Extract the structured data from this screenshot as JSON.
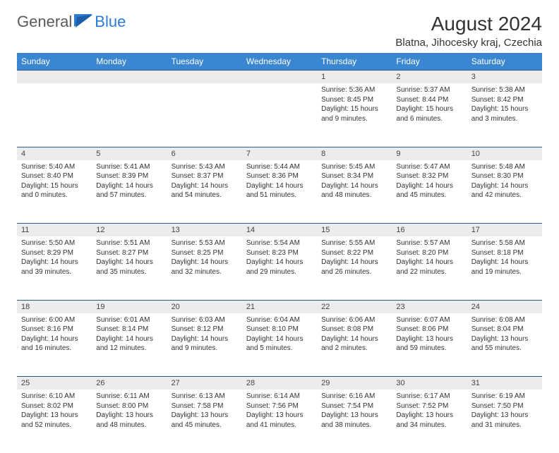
{
  "logo": {
    "general": "General",
    "blue": "Blue"
  },
  "title": "August 2024",
  "location": "Blatna, Jihocesky kraj, Czechia",
  "weekdays": [
    "Sunday",
    "Monday",
    "Tuesday",
    "Wednesday",
    "Thursday",
    "Friday",
    "Saturday"
  ],
  "header_bg": "#3a86d0",
  "border_color": "#2e5b8f",
  "daynum_bg": "#ececec",
  "days": [
    {
      "n": "",
      "sr": "",
      "ss": "",
      "dl1": "",
      "dl2": ""
    },
    {
      "n": "",
      "sr": "",
      "ss": "",
      "dl1": "",
      "dl2": ""
    },
    {
      "n": "",
      "sr": "",
      "ss": "",
      "dl1": "",
      "dl2": ""
    },
    {
      "n": "",
      "sr": "",
      "ss": "",
      "dl1": "",
      "dl2": ""
    },
    {
      "n": "1",
      "sr": "Sunrise: 5:36 AM",
      "ss": "Sunset: 8:45 PM",
      "dl1": "Daylight: 15 hours",
      "dl2": "and 9 minutes."
    },
    {
      "n": "2",
      "sr": "Sunrise: 5:37 AM",
      "ss": "Sunset: 8:44 PM",
      "dl1": "Daylight: 15 hours",
      "dl2": "and 6 minutes."
    },
    {
      "n": "3",
      "sr": "Sunrise: 5:38 AM",
      "ss": "Sunset: 8:42 PM",
      "dl1": "Daylight: 15 hours",
      "dl2": "and 3 minutes."
    },
    {
      "n": "4",
      "sr": "Sunrise: 5:40 AM",
      "ss": "Sunset: 8:40 PM",
      "dl1": "Daylight: 15 hours",
      "dl2": "and 0 minutes."
    },
    {
      "n": "5",
      "sr": "Sunrise: 5:41 AM",
      "ss": "Sunset: 8:39 PM",
      "dl1": "Daylight: 14 hours",
      "dl2": "and 57 minutes."
    },
    {
      "n": "6",
      "sr": "Sunrise: 5:43 AM",
      "ss": "Sunset: 8:37 PM",
      "dl1": "Daylight: 14 hours",
      "dl2": "and 54 minutes."
    },
    {
      "n": "7",
      "sr": "Sunrise: 5:44 AM",
      "ss": "Sunset: 8:36 PM",
      "dl1": "Daylight: 14 hours",
      "dl2": "and 51 minutes."
    },
    {
      "n": "8",
      "sr": "Sunrise: 5:45 AM",
      "ss": "Sunset: 8:34 PM",
      "dl1": "Daylight: 14 hours",
      "dl2": "and 48 minutes."
    },
    {
      "n": "9",
      "sr": "Sunrise: 5:47 AM",
      "ss": "Sunset: 8:32 PM",
      "dl1": "Daylight: 14 hours",
      "dl2": "and 45 minutes."
    },
    {
      "n": "10",
      "sr": "Sunrise: 5:48 AM",
      "ss": "Sunset: 8:30 PM",
      "dl1": "Daylight: 14 hours",
      "dl2": "and 42 minutes."
    },
    {
      "n": "11",
      "sr": "Sunrise: 5:50 AM",
      "ss": "Sunset: 8:29 PM",
      "dl1": "Daylight: 14 hours",
      "dl2": "and 39 minutes."
    },
    {
      "n": "12",
      "sr": "Sunrise: 5:51 AM",
      "ss": "Sunset: 8:27 PM",
      "dl1": "Daylight: 14 hours",
      "dl2": "and 35 minutes."
    },
    {
      "n": "13",
      "sr": "Sunrise: 5:53 AM",
      "ss": "Sunset: 8:25 PM",
      "dl1": "Daylight: 14 hours",
      "dl2": "and 32 minutes."
    },
    {
      "n": "14",
      "sr": "Sunrise: 5:54 AM",
      "ss": "Sunset: 8:23 PM",
      "dl1": "Daylight: 14 hours",
      "dl2": "and 29 minutes."
    },
    {
      "n": "15",
      "sr": "Sunrise: 5:55 AM",
      "ss": "Sunset: 8:22 PM",
      "dl1": "Daylight: 14 hours",
      "dl2": "and 26 minutes."
    },
    {
      "n": "16",
      "sr": "Sunrise: 5:57 AM",
      "ss": "Sunset: 8:20 PM",
      "dl1": "Daylight: 14 hours",
      "dl2": "and 22 minutes."
    },
    {
      "n": "17",
      "sr": "Sunrise: 5:58 AM",
      "ss": "Sunset: 8:18 PM",
      "dl1": "Daylight: 14 hours",
      "dl2": "and 19 minutes."
    },
    {
      "n": "18",
      "sr": "Sunrise: 6:00 AM",
      "ss": "Sunset: 8:16 PM",
      "dl1": "Daylight: 14 hours",
      "dl2": "and 16 minutes."
    },
    {
      "n": "19",
      "sr": "Sunrise: 6:01 AM",
      "ss": "Sunset: 8:14 PM",
      "dl1": "Daylight: 14 hours",
      "dl2": "and 12 minutes."
    },
    {
      "n": "20",
      "sr": "Sunrise: 6:03 AM",
      "ss": "Sunset: 8:12 PM",
      "dl1": "Daylight: 14 hours",
      "dl2": "and 9 minutes."
    },
    {
      "n": "21",
      "sr": "Sunrise: 6:04 AM",
      "ss": "Sunset: 8:10 PM",
      "dl1": "Daylight: 14 hours",
      "dl2": "and 5 minutes."
    },
    {
      "n": "22",
      "sr": "Sunrise: 6:06 AM",
      "ss": "Sunset: 8:08 PM",
      "dl1": "Daylight: 14 hours",
      "dl2": "and 2 minutes."
    },
    {
      "n": "23",
      "sr": "Sunrise: 6:07 AM",
      "ss": "Sunset: 8:06 PM",
      "dl1": "Daylight: 13 hours",
      "dl2": "and 59 minutes."
    },
    {
      "n": "24",
      "sr": "Sunrise: 6:08 AM",
      "ss": "Sunset: 8:04 PM",
      "dl1": "Daylight: 13 hours",
      "dl2": "and 55 minutes."
    },
    {
      "n": "25",
      "sr": "Sunrise: 6:10 AM",
      "ss": "Sunset: 8:02 PM",
      "dl1": "Daylight: 13 hours",
      "dl2": "and 52 minutes."
    },
    {
      "n": "26",
      "sr": "Sunrise: 6:11 AM",
      "ss": "Sunset: 8:00 PM",
      "dl1": "Daylight: 13 hours",
      "dl2": "and 48 minutes."
    },
    {
      "n": "27",
      "sr": "Sunrise: 6:13 AM",
      "ss": "Sunset: 7:58 PM",
      "dl1": "Daylight: 13 hours",
      "dl2": "and 45 minutes."
    },
    {
      "n": "28",
      "sr": "Sunrise: 6:14 AM",
      "ss": "Sunset: 7:56 PM",
      "dl1": "Daylight: 13 hours",
      "dl2": "and 41 minutes."
    },
    {
      "n": "29",
      "sr": "Sunrise: 6:16 AM",
      "ss": "Sunset: 7:54 PM",
      "dl1": "Daylight: 13 hours",
      "dl2": "and 38 minutes."
    },
    {
      "n": "30",
      "sr": "Sunrise: 6:17 AM",
      "ss": "Sunset: 7:52 PM",
      "dl1": "Daylight: 13 hours",
      "dl2": "and 34 minutes."
    },
    {
      "n": "31",
      "sr": "Sunrise: 6:19 AM",
      "ss": "Sunset: 7:50 PM",
      "dl1": "Daylight: 13 hours",
      "dl2": "and 31 minutes."
    }
  ]
}
